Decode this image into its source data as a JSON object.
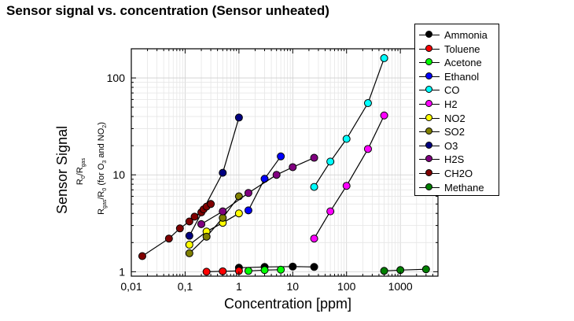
{
  "title": "Sensor signal vs. concentration (Sensor unheated)",
  "chart_data": {
    "type": "line",
    "title": "Sensor signal vs. concentration (Sensor unheated)",
    "xlabel": "Concentration [ppm]",
    "ylabel": "Sensor Signal",
    "ylabel_sub": {
      "line1": {
        "main": "R",
        "sub1": "0",
        "mid": "/R",
        "sub2": "gas"
      },
      "line2": {
        "main": "R",
        "sub1": "gas",
        "mid": "/R",
        "sub2": "0",
        "tail": " (for O",
        "sub3": "3",
        "tail2": " and NO",
        "sub4": "2",
        "close": ")"
      }
    },
    "x_scale": "log",
    "y_scale": "log",
    "xlim": [
      0.01,
      5000
    ],
    "ylim": [
      0.9,
      200
    ],
    "x_ticks": [
      0.01,
      0.1,
      1,
      10,
      100,
      1000
    ],
    "x_tick_labels": [
      "0,01",
      "0,1",
      "1",
      "10",
      "100",
      "1000"
    ],
    "y_ticks": [
      1,
      10,
      100
    ],
    "y_tick_labels": [
      "1",
      "10",
      "100"
    ],
    "grid": true,
    "legend_position": "top-right",
    "series": [
      {
        "name": "Ammonia",
        "color": "#000000",
        "x": [
          1,
          3,
          10,
          25
        ],
        "y": [
          1.1,
          1.12,
          1.13,
          1.12
        ]
      },
      {
        "name": "Toluene",
        "color": "#ff0000",
        "x": [
          0.25,
          0.5,
          1
        ],
        "y": [
          1.0,
          1.01,
          1.02
        ]
      },
      {
        "name": "Acetone",
        "color": "#00ff00",
        "x": [
          1.5,
          3,
          6
        ],
        "y": [
          1.02,
          1.04,
          1.05
        ]
      },
      {
        "name": "Ethanol",
        "color": "#0000ff",
        "x": [
          1.5,
          3,
          6
        ],
        "y": [
          4.3,
          9.1,
          15.5
        ]
      },
      {
        "name": "CO",
        "color": "#00ffff",
        "x": [
          25,
          50,
          100,
          250,
          500
        ],
        "y": [
          7.5,
          13.7,
          23.5,
          55,
          160
        ]
      },
      {
        "name": "H2",
        "color": "#ff00ff",
        "x": [
          25,
          50,
          100,
          250,
          500
        ],
        "y": [
          2.2,
          4.2,
          7.7,
          18.5,
          41
        ]
      },
      {
        "name": "NO2",
        "color": "#ffff00",
        "x": [
          0.12,
          0.25,
          0.5,
          1
        ],
        "y": [
          1.9,
          2.6,
          3.2,
          4.0
        ]
      },
      {
        "name": "SO2",
        "color": "#808000",
        "x": [
          0.12,
          0.25,
          0.5,
          1
        ],
        "y": [
          1.55,
          2.3,
          3.6,
          6.0
        ]
      },
      {
        "name": "O3",
        "color": "#000080",
        "x": [
          0.12,
          0.5,
          1
        ],
        "y": [
          2.35,
          10.5,
          39
        ]
      },
      {
        "name": "H2S",
        "color": "#800080",
        "x": [
          0.2,
          0.5,
          1.5,
          5,
          10,
          25
        ],
        "y": [
          3.1,
          4.2,
          6.5,
          10,
          12,
          15
        ]
      },
      {
        "name": "CH2O",
        "color": "#800000",
        "x": [
          0.016,
          0.05,
          0.08,
          0.12,
          0.15,
          0.2,
          0.22,
          0.25,
          0.3
        ],
        "y": [
          1.45,
          2.2,
          2.8,
          3.3,
          3.7,
          4.1,
          4.4,
          4.7,
          5.0
        ]
      },
      {
        "name": "Methane",
        "color": "#008000",
        "x": [
          500,
          1000,
          3000
        ],
        "y": [
          1.02,
          1.04,
          1.06
        ]
      }
    ]
  }
}
